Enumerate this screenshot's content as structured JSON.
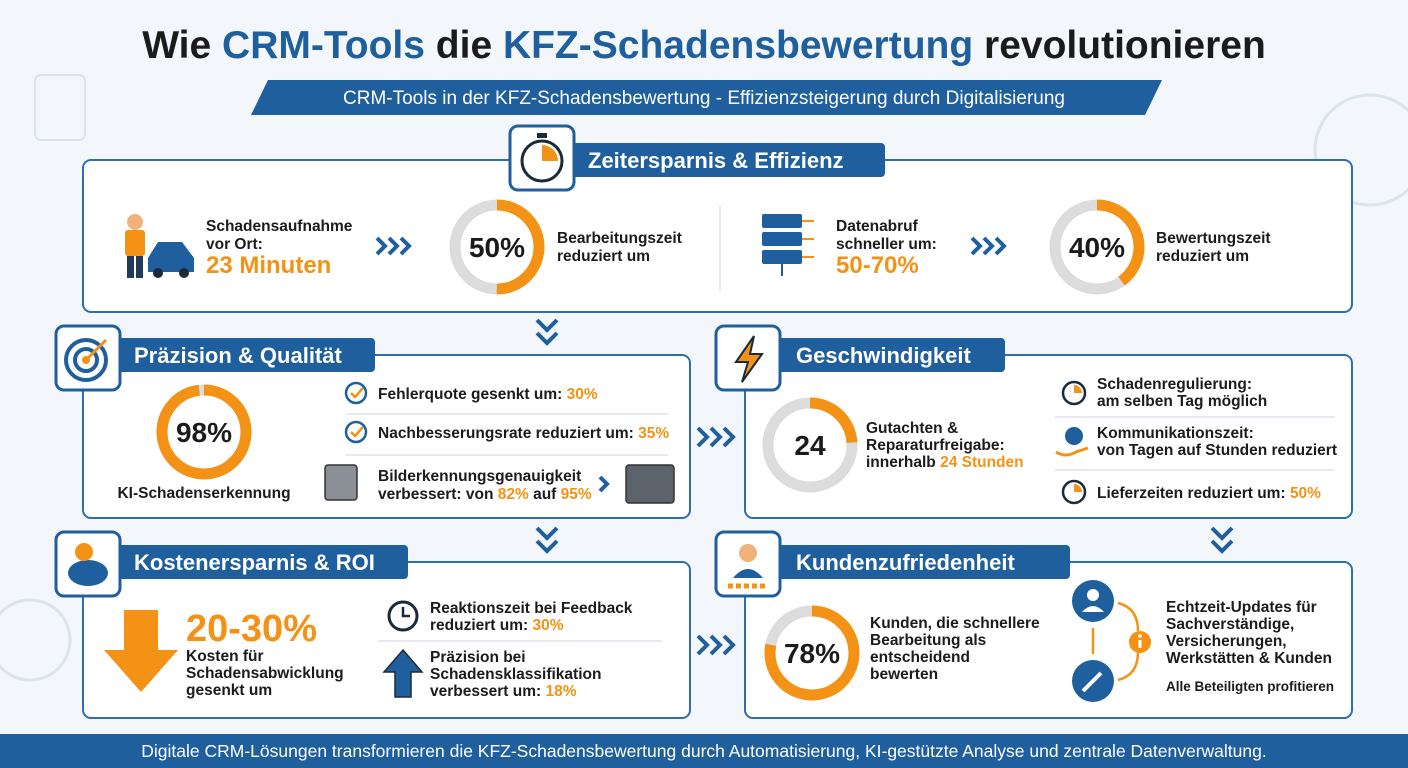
{
  "header": {
    "title": [
      "Wie ",
      "CRM-Tools",
      " die ",
      "KFZ-Schadensbewertung",
      " revolutionieren"
    ],
    "subtitle": "CRM-Tools in der KFZ-Schadensbewertung - Effizienzsteigerung durch Digitalisierung"
  },
  "zeit": {
    "title": "Zeitersparnis & Effizienz",
    "aufnahme": {
      "lines": [
        "Schadensaufnahme",
        "vor Ort:"
      ],
      "highlight": "23 Minuten"
    },
    "gauge1": {
      "value": 50,
      "label": "50%",
      "text": [
        "Bearbeitungszeit",
        "reduziert um"
      ]
    },
    "datenabruf": {
      "lines": [
        "Datenabruf",
        "schneller um:"
      ],
      "highlight": "50-70%"
    },
    "gauge2": {
      "value": 40,
      "label": "40%",
      "text": [
        "Bewertungszeit",
        "reduziert um"
      ]
    }
  },
  "praezision": {
    "title": "Präzision & Qualität",
    "gauge": {
      "value": 98,
      "label": "98%",
      "caption": "KI-Schadenserkennung"
    },
    "items": [
      {
        "text": "Fehlerquote gesenkt um: ",
        "highlight": "30%"
      },
      {
        "text": "Nachbesserungsrate reduziert um: ",
        "highlight": "35%"
      }
    ],
    "bild": {
      "line1": "Bilderkennungsgenauigkeit",
      "line2": "verbessert: von ",
      "from": "82%",
      "mid": " auf ",
      "to": "95%"
    }
  },
  "geschwindigkeit": {
    "title": "Geschwindigkeit",
    "gauge": {
      "value": 24,
      "label": "24",
      "text": [
        "Gutachten &",
        "Reparaturfreigabe:",
        "innerhalb "
      ],
      "highlight": "24 Stunden"
    },
    "items": [
      {
        "lines": [
          "Schadenregulierung:",
          "am selben Tag möglich"
        ]
      },
      {
        "lines": [
          "Kommunikationszeit:",
          "von Tagen auf Stunden reduziert"
        ]
      },
      {
        "text": "Lieferzeiten reduziert um: ",
        "highlight": "50%"
      }
    ]
  },
  "kosten": {
    "title": "Kostenersparnis & ROI",
    "highlight": "20-30%",
    "lines": [
      "Kosten für",
      "Schadensabwicklung",
      "gesenkt um"
    ],
    "items": [
      {
        "lines": [
          "Reaktionszeit bei Feedback",
          "reduziert um: "
        ],
        "highlight": "30%"
      },
      {
        "lines": [
          "Präzision bei",
          "Schadensklassifikation",
          "verbessert um: "
        ],
        "highlight": "18%"
      }
    ]
  },
  "kunden": {
    "title": "Kundenzufriedenheit",
    "gauge": {
      "value": 78,
      "label": "78%",
      "text": [
        "Kunden, die schnellere",
        "Bearbeitung als",
        "entscheidend",
        "bewerten"
      ]
    },
    "updates": {
      "lines": [
        "Echtzeit-Updates für",
        "Sachverständige,",
        "Versicherungen,",
        "Werkstätten & Kunden"
      ],
      "note": "Alle Beteiligten profitieren"
    }
  },
  "footer": "Digitale CRM-Lösungen transformieren die KFZ-Schadensbewertung durch Automatisierung, KI-gestützte Analyse und zentrale Datenverwaltung."
}
